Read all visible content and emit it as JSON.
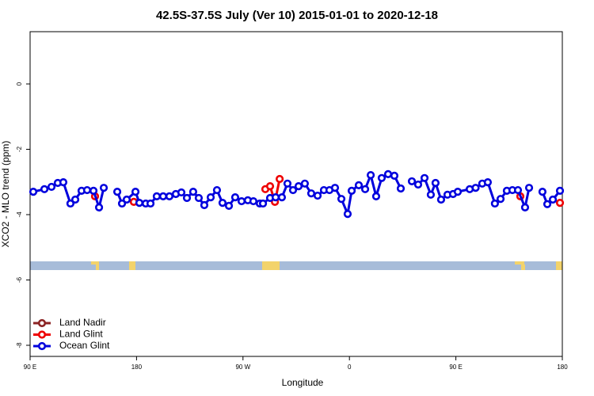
{
  "chart_data": {
    "type": "line",
    "title": "42.5S-37.5S July (Ver 10)   2015-01-01 to 2020-12-18",
    "xlabel": "Longitude",
    "ylabel": "XCO2 - MLO trend (ppm)",
    "xlim": [
      90,
      540
    ],
    "ylim": [
      -8.34,
      1.6
    ],
    "xticks": [
      {
        "value": 90,
        "label": "90 E"
      },
      {
        "value": 180,
        "label": "180"
      },
      {
        "value": 270,
        "label": "90 W"
      },
      {
        "value": 360,
        "label": "0"
      },
      {
        "value": 450,
        "label": "90 E"
      },
      {
        "value": 540,
        "label": "180"
      }
    ],
    "yticks": [
      0,
      -2,
      -4,
      -6,
      -8
    ],
    "legend": "lower left",
    "series": [
      {
        "name": "Land Nadir",
        "color": "#8b2323",
        "x": [],
        "values": []
      },
      {
        "name": "Land Glint",
        "color": "#ee0000",
        "x": [
          144.9,
          160,
          177.7,
          230,
          288.9,
          292.9,
          297.0,
          301.0,
          400,
          504.5,
          520,
          538.0
        ],
        "values": [
          -3.44,
          null,
          -3.61,
          null,
          -3.22,
          -3.13,
          -3.61,
          -2.91,
          null,
          -3.44,
          null,
          -3.64
        ]
      },
      {
        "name": "Ocean Glint",
        "color": "#0000dd",
        "x": [
          92.7,
          102.1,
          108.1,
          113.4,
          118.1,
          124.1,
          128.2,
          133.5,
          138.2,
          143.6,
          148.3,
          152.3,
          158,
          163.7,
          167.7,
          171.7,
          179.1,
          182.4,
          187.8,
          191.8,
          197.1,
          202.5,
          207.8,
          213.2,
          217.9,
          222.6,
          227.9,
          232.6,
          237.3,
          242.7,
          248.0,
          252.7,
          258.1,
          263.4,
          268.8,
          274.1,
          278.8,
          284.2,
          286.9,
          292.9,
          297.6,
          302.9,
          307.6,
          312.3,
          317.0,
          322.3,
          327.7,
          333.1,
          338.4,
          343.1,
          347.8,
          353.2,
          358.5,
          361.9,
          367.9,
          373.3,
          378.0,
          382.6,
          387.3,
          392.7,
          398.0,
          403.4,
          408,
          412.8,
          418.1,
          423.5,
          428.8,
          432.8,
          437.5,
          442.9,
          447.6,
          451.6,
          461.7,
          466.7,
          472.3,
          477.0,
          483.0,
          487.8,
          493.1,
          497.8,
          502.5,
          508.5,
          511.9,
          517,
          523.2,
          527.3,
          532.0,
          538.0
        ],
        "values": [
          -3.3,
          -3.22,
          -3.15,
          -3.03,
          -3.01,
          -3.66,
          -3.54,
          -3.27,
          -3.25,
          -3.27,
          -3.78,
          -3.18,
          null,
          -3.3,
          -3.66,
          -3.54,
          -3.3,
          -3.64,
          -3.66,
          -3.66,
          -3.44,
          -3.44,
          -3.44,
          -3.37,
          -3.32,
          -3.49,
          -3.3,
          -3.49,
          -3.71,
          -3.47,
          -3.25,
          -3.64,
          -3.73,
          -3.47,
          -3.59,
          -3.56,
          -3.59,
          -3.66,
          -3.66,
          -3.49,
          -3.47,
          -3.47,
          -3.05,
          -3.25,
          -3.13,
          -3.05,
          -3.35,
          -3.42,
          -3.25,
          -3.25,
          -3.18,
          -3.52,
          -3.98,
          -3.27,
          -3.1,
          -3.22,
          -2.79,
          -3.44,
          -2.88,
          -2.76,
          -2.81,
          -3.2,
          null,
          -2.98,
          -3.08,
          -2.88,
          -3.39,
          -3.03,
          -3.54,
          -3.39,
          -3.37,
          -3.3,
          -3.22,
          -3.18,
          -3.05,
          -3.01,
          -3.66,
          -3.52,
          -3.27,
          -3.25,
          -3.25,
          -3.78,
          -3.18,
          null,
          -3.3,
          -3.68,
          -3.54,
          -3.27
        ]
      }
    ]
  }
}
